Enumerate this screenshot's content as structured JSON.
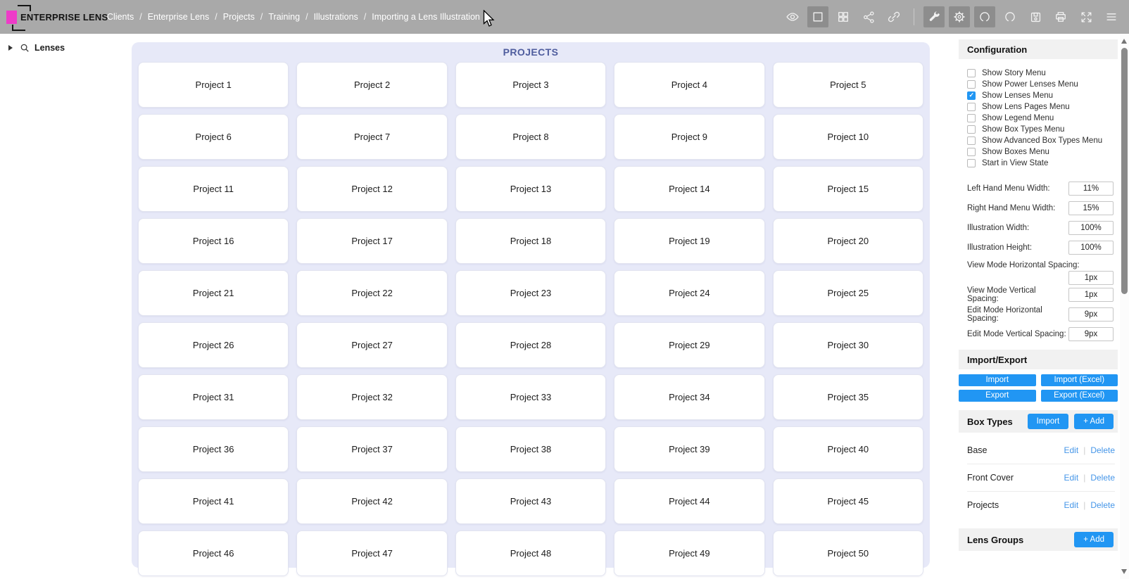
{
  "header": {
    "logo": {
      "text": "ENTERPRISE LENS"
    },
    "breadcrumb_separator": "/",
    "breadcrumbs": [
      "Clients",
      "Enterprise Lens",
      "Projects",
      "Training",
      "Illustrations",
      "Importing a Lens Illustration"
    ],
    "icons": [
      {
        "name": "eye",
        "active": false
      },
      {
        "name": "view-square",
        "active": true
      },
      {
        "name": "grid",
        "active": false
      },
      {
        "name": "share",
        "active": false
      },
      {
        "name": "link",
        "active": false
      },
      {
        "name": "divider"
      },
      {
        "name": "wrench",
        "active": true
      },
      {
        "name": "gear",
        "active": true
      },
      {
        "name": "undo",
        "active": true
      },
      {
        "name": "redo",
        "active": false
      },
      {
        "name": "save",
        "active": false
      },
      {
        "name": "print",
        "active": false
      },
      {
        "name": "fullscreen",
        "active": false
      },
      {
        "name": "menu",
        "active": false
      }
    ]
  },
  "left_sidebar": {
    "lenses_label": "Lenses"
  },
  "main": {
    "title": "PROJECTS",
    "projects": [
      "Project 1",
      "Project 2",
      "Project 3",
      "Project 4",
      "Project 5",
      "Project 6",
      "Project 7",
      "Project 8",
      "Project 9",
      "Project 10",
      "Project 11",
      "Project 12",
      "Project 13",
      "Project 14",
      "Project 15",
      "Project 16",
      "Project 17",
      "Project 18",
      "Project 19",
      "Project 20",
      "Project 21",
      "Project 22",
      "Project 23",
      "Project 24",
      "Project 25",
      "Project 26",
      "Project 27",
      "Project 28",
      "Project 29",
      "Project 30",
      "Project 31",
      "Project 32",
      "Project 33",
      "Project 34",
      "Project 35",
      "Project 36",
      "Project 37",
      "Project 38",
      "Project 39",
      "Project 40",
      "Project 41",
      "Project 42",
      "Project 43",
      "Project 44",
      "Project 45",
      "Project 46",
      "Project 47",
      "Project 48",
      "Project 49",
      "Project 50"
    ]
  },
  "right_panel": {
    "configuration": {
      "title": "Configuration",
      "checkboxes": [
        {
          "label": "Show Story Menu",
          "checked": false
        },
        {
          "label": "Show Power Lenses Menu",
          "checked": false
        },
        {
          "label": "Show Lenses Menu",
          "checked": true
        },
        {
          "label": "Show Lens Pages Menu",
          "checked": false
        },
        {
          "label": "Show Legend Menu",
          "checked": false
        },
        {
          "label": "Show Box Types Menu",
          "checked": false
        },
        {
          "label": "Show Advanced Box Types Menu",
          "checked": false
        },
        {
          "label": "Show Boxes Menu",
          "checked": false
        },
        {
          "label": "Start in View State",
          "checked": false
        }
      ],
      "fields": [
        {
          "label": "Left Hand Menu Width:",
          "value": "11%",
          "wrap": false
        },
        {
          "label": "Right Hand Menu Width:",
          "value": "15%",
          "wrap": false
        },
        {
          "label": "Illustration Width:",
          "value": "100%",
          "wrap": false
        },
        {
          "label": "Illustration Height:",
          "value": "100%",
          "wrap": false
        },
        {
          "label": "View Mode Horizontal Spacing:",
          "value": "1px",
          "wrap": true
        },
        {
          "label": "View Mode Vertical Spacing:",
          "value": "1px",
          "wrap": false
        },
        {
          "label": "Edit Mode Horizontal Spacing:",
          "value": "9px",
          "wrap": false
        },
        {
          "label": "Edit Mode Vertical Spacing:",
          "value": "9px",
          "wrap": false
        }
      ]
    },
    "import_export": {
      "title": "Import/Export",
      "buttons": [
        "Import",
        "Import (Excel)",
        "Export",
        "Export (Excel)"
      ]
    },
    "box_types": {
      "title": "Box Types",
      "import_button": "Import",
      "add_button": "+ Add",
      "separator": "|",
      "items": [
        {
          "name": "Base",
          "edit_label": "Edit",
          "delete_label": "Delete"
        },
        {
          "name": "Front Cover",
          "edit_label": "Edit",
          "delete_label": "Delete"
        },
        {
          "name": "Projects",
          "edit_label": "Edit",
          "delete_label": "Delete"
        }
      ]
    },
    "lens_groups": {
      "title": "Lens Groups",
      "add_button": "+ Add"
    }
  },
  "colors": {
    "accent_blue": "#2196F3",
    "logo_pink": "#EE3BC8",
    "header_gray": "#A9A9A9",
    "panel_lavender": "#E7E9F8",
    "title_blue": "#4F5D9E",
    "link_blue": "#4596E8"
  }
}
